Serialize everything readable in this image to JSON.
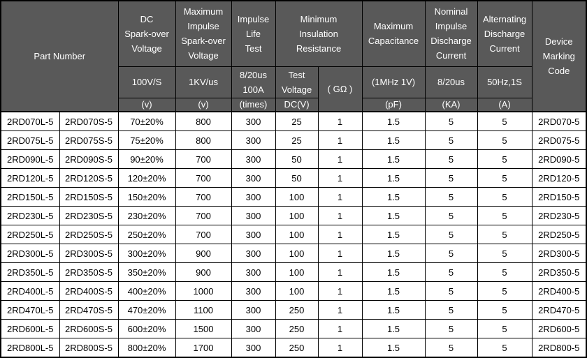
{
  "colors": {
    "header_bg": "#595959",
    "header_text": "#ffffff",
    "body_bg": "#ffffff",
    "body_text": "#000000",
    "border": "#000000"
  },
  "table": {
    "header": {
      "part_number": "Part Number",
      "dc_spark_title": "DC\nSpark-over\nVoltage",
      "dc_spark_cond": "100V/S",
      "dc_spark_unit": "(v)",
      "max_impulse_title": "Maximum\nImpulse\nSpark-over\nVoltage",
      "max_impulse_cond": "1KV/us",
      "max_impulse_unit": "(v)",
      "impulse_life_title": "Impulse\nLife\nTest",
      "impulse_life_cond": "8/20us\n100A",
      "impulse_life_unit": "(times)",
      "min_insulation_title": "Minimum\nInsulation\nResistance",
      "test_voltage_cond": "Test\nVoltage",
      "test_voltage_unit": "DC(V)",
      "insulation_gohm": "( GΩ )",
      "max_cap_title": "Maximum\nCapacitance",
      "max_cap_cond": "(1MHz 1V)",
      "max_cap_unit": "(pF)",
      "nominal_impulse_title": "Nominal\nImpulse\nDischarge\nCurrent",
      "nominal_impulse_cond": "8/20us",
      "nominal_impulse_unit": "(KA)",
      "alt_discharge_title": "Alternating\nDischarge\nCurrent",
      "alt_discharge_cond": "50Hz,1S",
      "alt_discharge_unit": "(A)",
      "device_marking_title": "Device\nMarking\nCode"
    },
    "rows": [
      [
        "2RD070L-5",
        "2RD070S-5",
        "70±20%",
        "800",
        "300",
        "25",
        "1",
        "1.5",
        "5",
        "5",
        "2RD070-5"
      ],
      [
        "2RD075L-5",
        "2RD075S-5",
        "75±20%",
        "800",
        "300",
        "25",
        "1",
        "1.5",
        "5",
        "5",
        "2RD075-5"
      ],
      [
        "2RD090L-5",
        "2RD090S-5",
        "90±20%",
        "700",
        "300",
        "50",
        "1",
        "1.5",
        "5",
        "5",
        "2RD090-5"
      ],
      [
        "2RD120L-5",
        "2RD120S-5",
        "120±20%",
        "700",
        "300",
        "50",
        "1",
        "1.5",
        "5",
        "5",
        "2RD120-5"
      ],
      [
        "2RD150L-5",
        "2RD150S-5",
        "150±20%",
        "700",
        "300",
        "100",
        "1",
        "1.5",
        "5",
        "5",
        "2RD150-5"
      ],
      [
        "2RD230L-5",
        "2RD230S-5",
        "230±20%",
        "700",
        "300",
        "100",
        "1",
        "1.5",
        "5",
        "5",
        "2RD230-5"
      ],
      [
        "2RD250L-5",
        "2RD250S-5",
        "250±20%",
        "700",
        "300",
        "100",
        "1",
        "1.5",
        "5",
        "5",
        "2RD250-5"
      ],
      [
        "2RD300L-5",
        "2RD300S-5",
        "300±20%",
        "900",
        "300",
        "100",
        "1",
        "1.5",
        "5",
        "5",
        "2RD300-5"
      ],
      [
        "2RD350L-5",
        "2RD350S-5",
        "350±20%",
        "900",
        "300",
        "100",
        "1",
        "1.5",
        "5",
        "5",
        "2RD350-5"
      ],
      [
        "2RD400L-5",
        "2RD400S-5",
        "400±20%",
        "1000",
        "300",
        "100",
        "1",
        "1.5",
        "5",
        "5",
        "2RD400-5"
      ],
      [
        "2RD470L-5",
        "2RD470S-5",
        "470±20%",
        "1100",
        "300",
        "250",
        "1",
        "1.5",
        "5",
        "5",
        "2RD470-5"
      ],
      [
        "2RD600L-5",
        "2RD600S-5",
        "600±20%",
        "1500",
        "300",
        "250",
        "1",
        "1.5",
        "5",
        "5",
        "2RD600-5"
      ],
      [
        "2RD800L-5",
        "2RD800S-5",
        "800±20%",
        "1700",
        "300",
        "250",
        "1",
        "1.5",
        "5",
        "5",
        "2RD800-5"
      ]
    ]
  }
}
